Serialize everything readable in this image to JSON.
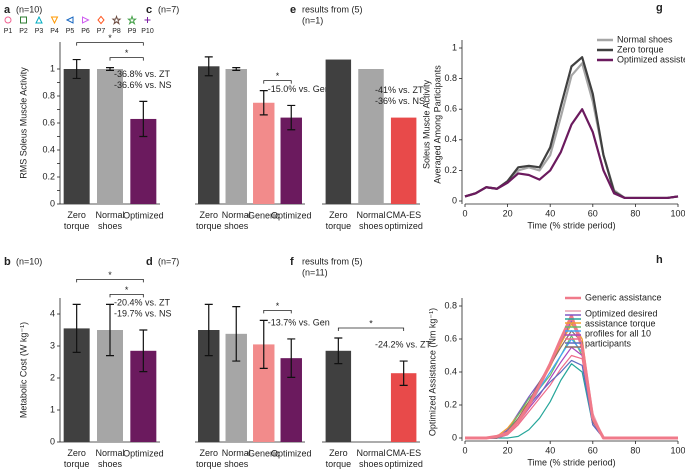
{
  "chart_data": [
    {
      "type": "bar",
      "label": "a",
      "n": "(n=10)",
      "ylabel": "RMS Soleus Muscle Activity",
      "categories": [
        "Zero torque",
        "Normal shoes",
        "Optimized"
      ],
      "values": [
        1.0,
        1.0,
        0.63
      ],
      "errors": [
        0.07,
        0.01,
        0.13
      ],
      "colors": [
        "#404040",
        "#a6a6a6",
        "#6b1a5e"
      ],
      "ylim": [
        0,
        1.2
      ],
      "yticks": [
        0,
        0.1,
        0.2,
        0.3,
        0.4,
        0.5,
        0.6,
        0.7,
        0.8,
        0.9,
        1
      ],
      "annotations": [
        "-36.8% vs. ZT",
        "-36.6% vs. NS"
      ],
      "significance": [
        {
          "from": 0,
          "to": 2,
          "label": "*"
        },
        {
          "from": 1,
          "to": 2,
          "label": "*"
        }
      ],
      "participants": [
        {
          "name": "P1",
          "color": "#f06292",
          "marker": "circle"
        },
        {
          "name": "P2",
          "color": "#2e7d32",
          "marker": "square"
        },
        {
          "name": "P3",
          "color": "#00acc1",
          "marker": "triangle-up"
        },
        {
          "name": "P4",
          "color": "#ff9800",
          "marker": "triangle-down"
        },
        {
          "name": "P5",
          "color": "#1565c0",
          "marker": "triangle-left"
        },
        {
          "name": "P6",
          "color": "#ce5cf0",
          "marker": "triangle-right"
        },
        {
          "name": "P7",
          "color": "#ff5722",
          "marker": "diamond"
        },
        {
          "name": "P8",
          "color": "#6d4c41",
          "marker": "star"
        },
        {
          "name": "P9",
          "color": "#43a047",
          "marker": "star"
        },
        {
          "name": "P10",
          "color": "#7b1fa2",
          "marker": "plus"
        }
      ]
    },
    {
      "type": "bar",
      "label": "b",
      "n": "(n=10)",
      "ylabel": "Metabolic Cost (W kg⁻¹)",
      "categories": [
        "Zero torque",
        "Normal shoes",
        "Optimized"
      ],
      "values": [
        3.55,
        3.5,
        2.85
      ],
      "errors": [
        0.75,
        0.8,
        0.65
      ],
      "colors": [
        "#404040",
        "#a6a6a6",
        "#6b1a5e"
      ],
      "ylim": [
        0,
        4.5
      ],
      "yticks": [
        0,
        1,
        2,
        3,
        4
      ],
      "annotations": [
        "-20.4% vs. ZT",
        "-19.7% vs. NS"
      ],
      "significance": [
        {
          "from": 0,
          "to": 2,
          "label": "*"
        },
        {
          "from": 1,
          "to": 2,
          "label": "*"
        }
      ]
    },
    {
      "type": "bar",
      "label": "c",
      "n": "(n=7)",
      "categories": [
        "Zero torque",
        "Normal shoes",
        "Generic",
        "Optimized"
      ],
      "values": [
        1.02,
        1.0,
        0.75,
        0.64
      ],
      "errors": [
        0.07,
        0.01,
        0.09,
        0.09
      ],
      "colors": [
        "#404040",
        "#a6a6a6",
        "#f28b8b",
        "#6b1a5e"
      ],
      "ylim": [
        0,
        1.2
      ],
      "annotations": [
        "-15.0% vs. Gen"
      ],
      "significance": [
        {
          "from": 2,
          "to": 3,
          "label": "*"
        }
      ]
    },
    {
      "type": "bar",
      "label": "d",
      "n": "(n=7)",
      "categories": [
        "Zero torque",
        "Normal shoes",
        "Generic",
        "Optimized"
      ],
      "values": [
        3.5,
        3.38,
        3.05,
        2.62
      ],
      "errors": [
        0.8,
        0.85,
        0.75,
        0.6
      ],
      "colors": [
        "#404040",
        "#a6a6a6",
        "#f28b8b",
        "#6b1a5e"
      ],
      "ylim": [
        0,
        4.5
      ],
      "annotations": [
        "-13.7% vs. Gen"
      ],
      "significance": [
        {
          "from": 2,
          "to": 3,
          "label": "*"
        }
      ]
    },
    {
      "type": "bar",
      "label": "e",
      "source": "results from (5)",
      "n": "(n=1)",
      "categories": [
        "Zero torque",
        "Normal shoes",
        "CMA-ES optimized"
      ],
      "values": [
        1.07,
        1.0,
        0.64
      ],
      "colors": [
        "#404040",
        "#a6a6a6",
        "#e84a4a"
      ],
      "ylim": [
        0,
        1.2
      ],
      "annotations": [
        "-41% vs. ZT",
        "-36% vs. NS"
      ]
    },
    {
      "type": "bar",
      "label": "f",
      "source": "results from (5)",
      "n": "(n=11)",
      "categories": [
        "Zero torque",
        "Normal shoes",
        "CMA-ES optimized"
      ],
      "values": [
        2.85,
        null,
        2.15
      ],
      "errors": [
        0.4,
        null,
        0.38
      ],
      "colors": [
        "#404040",
        "#a6a6a6",
        "#e84a4a"
      ],
      "ylim": [
        0,
        4.5
      ],
      "annotations": [
        "-24.2% vs. ZT"
      ],
      "significance": [
        {
          "from": 0,
          "to": 2,
          "label": "*"
        }
      ]
    },
    {
      "type": "line",
      "label": "g",
      "ylabel": [
        "Soleus Muscle Activity",
        "Averaged Among Participants"
      ],
      "xlabel": "Time (% stride period)",
      "x": [
        0,
        5,
        10,
        15,
        20,
        25,
        30,
        35,
        40,
        45,
        50,
        55,
        60,
        65,
        70,
        75,
        80,
        85,
        90,
        95,
        100
      ],
      "xlim": [
        0,
        100
      ],
      "xticks": [
        0,
        20,
        40,
        60,
        80,
        100
      ],
      "ylim": [
        0,
        1
      ],
      "yticks": [
        0,
        0.2,
        0.4,
        0.6,
        0.8,
        1
      ],
      "series": [
        {
          "name": "Normal shoes",
          "color": "#a6a6a6",
          "values": [
            0.03,
            0.05,
            0.09,
            0.08,
            0.12,
            0.2,
            0.22,
            0.2,
            0.3,
            0.55,
            0.82,
            0.9,
            0.65,
            0.3,
            0.07,
            0.02,
            0.02,
            0.02,
            0.02,
            0.02,
            0.03
          ]
        },
        {
          "name": "Zero torque",
          "color": "#404040",
          "values": [
            0.03,
            0.05,
            0.09,
            0.08,
            0.13,
            0.22,
            0.23,
            0.22,
            0.35,
            0.62,
            0.88,
            0.94,
            0.7,
            0.3,
            0.06,
            0.02,
            0.02,
            0.02,
            0.02,
            0.02,
            0.03
          ]
        },
        {
          "name": "Optimized assisted",
          "color": "#6b1a5e",
          "values": [
            0.03,
            0.05,
            0.09,
            0.08,
            0.12,
            0.18,
            0.17,
            0.14,
            0.2,
            0.32,
            0.5,
            0.6,
            0.45,
            0.2,
            0.05,
            0.02,
            0.02,
            0.02,
            0.02,
            0.02,
            0.03
          ]
        }
      ]
    },
    {
      "type": "line",
      "label": "h",
      "ylabel": [
        "Optimized Assistance (Nm kg⁻¹)"
      ],
      "xlabel": "Time (% stride period)",
      "x": [
        0,
        5,
        10,
        15,
        20,
        25,
        30,
        35,
        40,
        45,
        50,
        55,
        60,
        65,
        70,
        75,
        80,
        85,
        90,
        95,
        100
      ],
      "xlim": [
        0,
        100
      ],
      "xticks": [
        0,
        20,
        40,
        60,
        80,
        100
      ],
      "ylim": [
        0,
        0.8
      ],
      "yticks": [
        0,
        0.2,
        0.4,
        0.6,
        0.8
      ],
      "annotation": [
        "Optimized desired",
        "assistance torque",
        "profiles for all 10",
        "participants"
      ],
      "series": [
        {
          "name": "Generic assistance",
          "color": "#f07a8a",
          "values": [
            0,
            0,
            0,
            0.01,
            0.03,
            0.1,
            0.2,
            0.32,
            0.45,
            0.6,
            0.74,
            0.55,
            0.12,
            0,
            0,
            0,
            0,
            0,
            0,
            0,
            0
          ]
        },
        {
          "color": "#e8a0b0",
          "values": [
            0,
            0,
            0,
            0,
            0.02,
            0.08,
            0.18,
            0.3,
            0.44,
            0.6,
            0.73,
            0.6,
            0.15,
            0,
            0,
            0,
            0,
            0,
            0,
            0,
            0
          ]
        },
        {
          "color": "#7e57c2",
          "values": [
            0,
            0,
            0,
            0,
            0.05,
            0.15,
            0.25,
            0.34,
            0.45,
            0.58,
            0.71,
            0.55,
            0.1,
            0,
            0,
            0,
            0,
            0,
            0,
            0,
            0
          ]
        },
        {
          "color": "#26a69a",
          "values": [
            0,
            0,
            0,
            0,
            0,
            0.01,
            0.05,
            0.12,
            0.22,
            0.35,
            0.45,
            0.4,
            0.08,
            0,
            0,
            0,
            0,
            0,
            0,
            0,
            0
          ]
        },
        {
          "color": "#f0a030",
          "values": [
            0,
            0,
            0,
            0.01,
            0.06,
            0.14,
            0.22,
            0.32,
            0.43,
            0.57,
            0.69,
            0.6,
            0.12,
            0,
            0,
            0,
            0,
            0,
            0,
            0,
            0
          ]
        },
        {
          "color": "#66bb6a",
          "values": [
            0,
            0,
            0,
            0,
            0.04,
            0.14,
            0.24,
            0.3,
            0.38,
            0.5,
            0.62,
            0.5,
            0.1,
            0,
            0,
            0,
            0,
            0,
            0,
            0,
            0
          ]
        },
        {
          "color": "#42a5f5",
          "values": [
            0,
            0,
            0,
            0,
            0.02,
            0.1,
            0.2,
            0.3,
            0.4,
            0.5,
            0.6,
            0.52,
            0.1,
            0,
            0,
            0,
            0,
            0,
            0,
            0,
            0
          ]
        },
        {
          "color": "#ab47bc",
          "values": [
            0,
            0,
            0,
            0,
            0.03,
            0.1,
            0.18,
            0.26,
            0.36,
            0.46,
            0.55,
            0.5,
            0.08,
            0,
            0,
            0,
            0,
            0,
            0,
            0,
            0
          ]
        },
        {
          "color": "#ef6c8a",
          "values": [
            0,
            0,
            0,
            0,
            0.02,
            0.08,
            0.16,
            0.24,
            0.32,
            0.42,
            0.5,
            0.48,
            0.1,
            0,
            0,
            0,
            0,
            0,
            0,
            0,
            0
          ]
        },
        {
          "color": "#5c6bc0",
          "values": [
            0,
            0,
            0,
            0,
            0.03,
            0.1,
            0.2,
            0.27,
            0.34,
            0.4,
            0.47,
            0.44,
            0.08,
            0,
            0,
            0,
            0,
            0,
            0,
            0,
            0
          ]
        },
        {
          "color": "#8d6e63",
          "values": [
            0,
            0,
            0,
            0,
            0.04,
            0.12,
            0.22,
            0.34,
            0.44,
            0.55,
            0.65,
            0.58,
            0.1,
            0,
            0,
            0,
            0,
            0,
            0,
            0,
            0
          ]
        }
      ]
    }
  ]
}
